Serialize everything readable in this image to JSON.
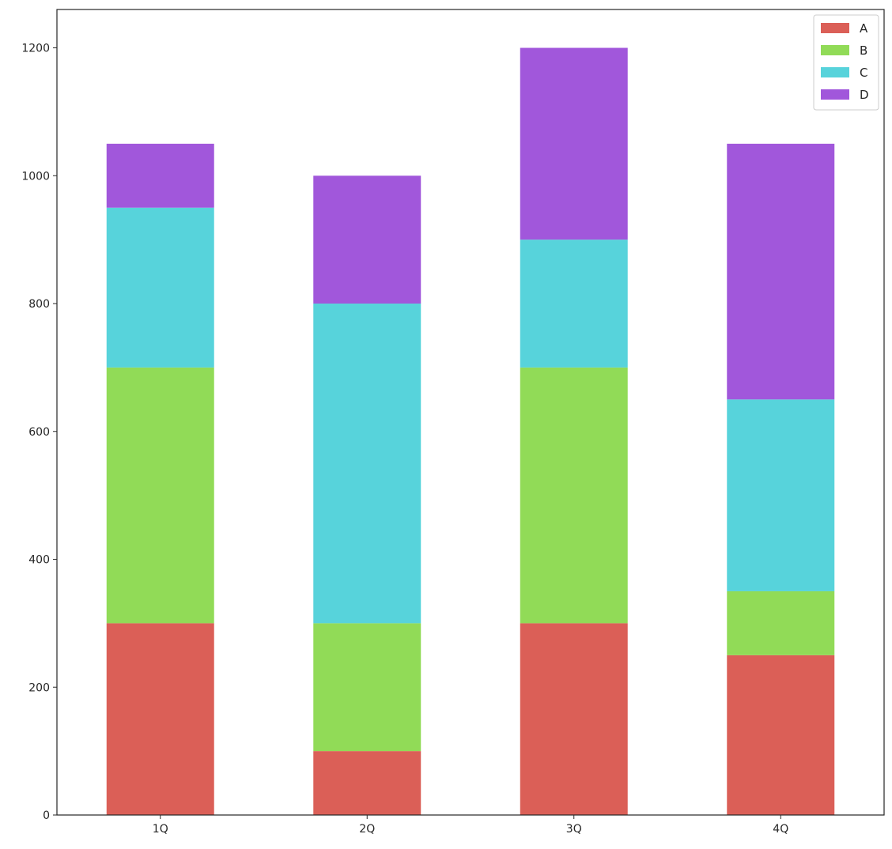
{
  "chart_data": {
    "type": "bar",
    "stacked": true,
    "title": "",
    "xlabel": "",
    "ylabel": "",
    "categories": [
      "1Q",
      "2Q",
      "3Q",
      "4Q"
    ],
    "series": [
      {
        "name": "A",
        "color": "#db5f57",
        "values": [
          300,
          100,
          300,
          250
        ]
      },
      {
        "name": "B",
        "color": "#91db57",
        "values": [
          400,
          200,
          400,
          100
        ]
      },
      {
        "name": "C",
        "color": "#57d3db",
        "values": [
          250,
          500,
          200,
          300
        ]
      },
      {
        "name": "D",
        "color": "#a157db",
        "values": [
          100,
          200,
          300,
          400
        ]
      }
    ],
    "ylim": [
      0,
      1260
    ],
    "yticks": [
      0,
      200,
      400,
      600,
      800,
      1000,
      1200
    ],
    "grid": false,
    "legend": "top-right"
  }
}
